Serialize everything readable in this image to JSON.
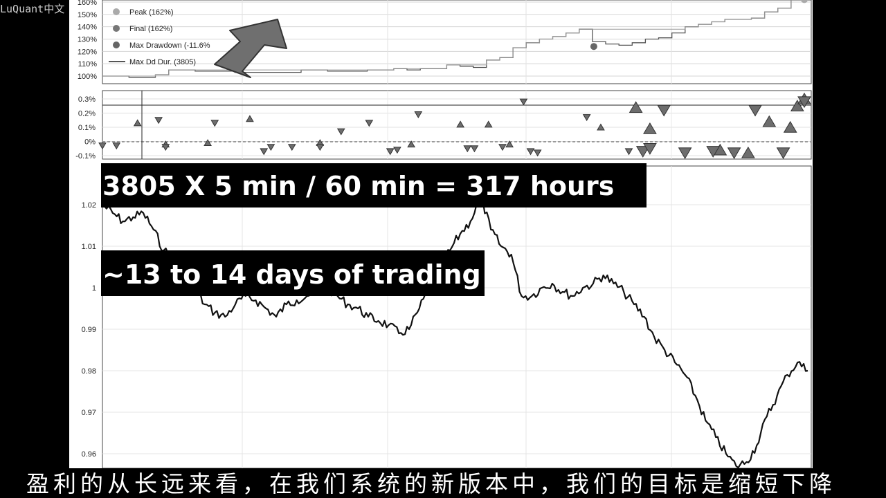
{
  "watermark": "LuQuant中文",
  "banners": {
    "line1": "3805 X  5 min /  60 min = 317 hours",
    "line2": "~13 to 14 days of trading"
  },
  "subtitle": "盈利的从长远来看，在我们系统的新版本中，我们的目标是缩短下降",
  "colors": {
    "line": "#111111",
    "marker": "#777777",
    "grid": "#bbbbbb",
    "arrow": "#6f6f6f"
  },
  "chart_data": [
    {
      "type": "line",
      "panel": "equity",
      "y_tick_labels": [
        "100%",
        "110%",
        "120%",
        "130%",
        "140%",
        "150%",
        "160%"
      ],
      "ylim": [
        1.0,
        1.62
      ],
      "legend": {
        "placement": "top-left",
        "entries": [
          "Peak (162%)",
          "Final (162%)",
          "Max Drawdown (-11.6%",
          "Max Dd Dur. (3805)"
        ]
      },
      "series": [
        {
          "values": [
            1.0,
            1.0,
            0.99,
            0.99,
            1.01,
            1.05,
            1.05,
            1.04,
            1.04,
            1.04,
            1.03,
            1.03,
            1.03,
            1.03,
            1.03,
            1.05,
            1.05,
            1.04,
            1.04,
            1.04,
            1.05,
            1.05,
            1.06,
            1.05,
            1.06,
            1.06,
            1.09,
            1.08,
            1.07,
            1.13,
            1.15,
            1.23,
            1.27,
            1.3,
            1.32,
            1.35,
            1.38,
            1.28,
            1.26,
            1.25,
            1.27,
            1.3,
            1.31,
            1.35,
            1.4,
            1.42,
            1.44,
            1.46,
            1.46,
            1.47,
            1.52,
            1.55,
            1.62,
            1.62
          ]
        }
      ],
      "markers": {
        "peak": 1.62,
        "final": 1.62,
        "max_drawdown": 1.24
      }
    },
    {
      "type": "scatter",
      "panel": "trades",
      "y_tick_labels": [
        "0.3%",
        "0.2%",
        "0.1%",
        "0%",
        "-0.1%"
      ],
      "ylim": [
        -0.12,
        0.35
      ],
      "series": [
        {
          "name": "up",
          "x": [
            0.05,
            0.09,
            0.15,
            0.21,
            0.31,
            0.44,
            0.51,
            0.55,
            0.58,
            0.71,
            0.76,
            0.78,
            0.88,
            0.92,
            0.95,
            0.98,
            0.99,
            1.0
          ],
          "values": [
            0.13,
            -0.02,
            -0.01,
            0.16,
            -0.01,
            -0.02,
            0.12,
            0.12,
            -0.02,
            0.1,
            0.24,
            0.09,
            -0.06,
            -0.08,
            0.14,
            0.1,
            0.25,
            0.3
          ]
        },
        {
          "name": "down",
          "x": [
            0.0,
            0.02,
            0.08,
            0.09,
            0.16,
            0.23,
            0.24,
            0.27,
            0.31,
            0.34,
            0.38,
            0.41,
            0.42,
            0.45,
            0.52,
            0.53,
            0.57,
            0.6,
            0.61,
            0.62,
            0.69,
            0.75,
            0.77,
            0.78,
            0.8,
            0.83,
            0.87,
            0.9,
            0.93,
            0.97,
            1.0
          ],
          "values": [
            -0.03,
            -0.03,
            0.15,
            -0.04,
            0.13,
            -0.07,
            -0.04,
            -0.04,
            -0.04,
            0.07,
            0.13,
            -0.07,
            -0.06,
            0.19,
            -0.05,
            -0.05,
            -0.04,
            0.28,
            -0.07,
            -0.08,
            0.17,
            -0.07,
            -0.07,
            -0.05,
            0.22,
            -0.08,
            -0.07,
            -0.08,
            0.22,
            -0.08,
            0.28
          ]
        }
      ]
    },
    {
      "type": "line",
      "panel": "price",
      "y_tick_labels": [
        "1.02",
        "1.01",
        "1",
        "0.99",
        "0.98",
        "0.97",
        "0.96"
      ],
      "ylim": [
        0.955,
        1.024
      ],
      "series": [
        {
          "values": [
            1.02,
            1.018,
            1.016,
            1.017,
            1.018,
            1.014,
            1.009,
            1.007,
            1.005,
            1.0,
            0.996,
            0.994,
            0.993,
            0.996,
            0.998,
            0.997,
            0.995,
            0.993,
            0.996,
            0.997,
            0.998,
            0.999,
            1.0,
            0.998,
            0.996,
            0.995,
            0.993,
            0.992,
            0.991,
            0.989,
            0.99,
            0.995,
            1.0,
            1.005,
            1.009,
            1.013,
            1.016,
            1.022,
            1.014,
            1.01,
            1.008,
            0.998,
            0.998,
            1.0,
            1.001,
            0.999,
            0.998,
            1.0,
            1.001,
            1.003,
            1.001,
            0.999,
            0.996,
            0.993,
            0.988,
            0.985,
            0.982,
            0.979,
            0.974,
            0.968,
            0.964,
            0.96,
            0.957,
            0.958,
            0.962,
            0.969,
            0.974,
            0.979,
            0.982,
            0.98
          ]
        }
      ]
    }
  ]
}
